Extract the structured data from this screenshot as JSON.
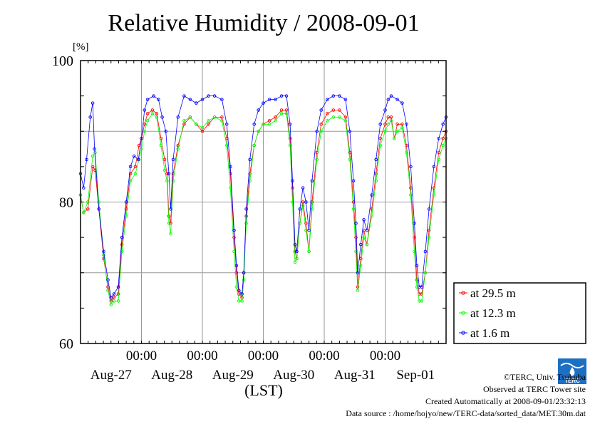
{
  "chart_data": {
    "type": "scatter",
    "title": "Relative Humidity / 2008-09-01",
    "ylabel": "[%]",
    "xlabel": "(LST)",
    "ylim": [
      60,
      100
    ],
    "yticks": [
      60,
      80,
      100
    ],
    "ygrid": [
      70,
      80,
      90
    ],
    "xlim": [
      -1.0,
      5.0
    ],
    "xaxis_note": "x in days since Aug-27 00:00 LST",
    "midnight_ticks": [
      {
        "x": 0,
        "label": "00:00"
      },
      {
        "x": 1,
        "label": "00:00"
      },
      {
        "x": 2,
        "label": "00:00"
      },
      {
        "x": 3,
        "label": "00:00"
      },
      {
        "x": 4,
        "label": "00:00"
      }
    ],
    "day_labels": [
      {
        "x": -0.5,
        "label": "Aug-27"
      },
      {
        "x": 0.5,
        "label": "Aug-28"
      },
      {
        "x": 1.5,
        "label": "Aug-29"
      },
      {
        "x": 2.5,
        "label": "Aug-30"
      },
      {
        "x": 3.5,
        "label": "Aug-31"
      },
      {
        "x": 4.5,
        "label": "Sep-01"
      }
    ],
    "legend_position": "right",
    "series": [
      {
        "name": "at 29.5 m",
        "color": "#ff0000",
        "points": [
          [
            -1.0,
            81
          ],
          [
            -0.95,
            78.5
          ],
          [
            -0.88,
            79
          ],
          [
            -0.8,
            85
          ],
          [
            -0.76,
            84.5
          ],
          [
            -0.7,
            79
          ],
          [
            -0.62,
            72
          ],
          [
            -0.55,
            68
          ],
          [
            -0.5,
            66
          ],
          [
            -0.45,
            66.5
          ],
          [
            -0.38,
            67
          ],
          [
            -0.32,
            74
          ],
          [
            -0.25,
            79
          ],
          [
            -0.18,
            84
          ],
          [
            -0.1,
            85
          ],
          [
            -0.04,
            88
          ],
          [
            0.0,
            89
          ],
          [
            0.05,
            91
          ],
          [
            0.1,
            92.5
          ],
          [
            0.18,
            93
          ],
          [
            0.25,
            92.5
          ],
          [
            0.32,
            89
          ],
          [
            0.38,
            86
          ],
          [
            0.42,
            84
          ],
          [
            0.45,
            78
          ],
          [
            0.48,
            77
          ],
          [
            0.52,
            84
          ],
          [
            0.6,
            88
          ],
          [
            0.7,
            91
          ],
          [
            0.8,
            92
          ],
          [
            0.9,
            91
          ],
          [
            1.0,
            90
          ],
          [
            1.1,
            91
          ],
          [
            1.2,
            92
          ],
          [
            1.32,
            92
          ],
          [
            1.4,
            89
          ],
          [
            1.46,
            84
          ],
          [
            1.52,
            75
          ],
          [
            1.56,
            70
          ],
          [
            1.6,
            67
          ],
          [
            1.65,
            66.5
          ],
          [
            1.68,
            70
          ],
          [
            1.72,
            78
          ],
          [
            1.78,
            84
          ],
          [
            1.85,
            88
          ],
          [
            1.92,
            90
          ],
          [
            2.0,
            91
          ],
          [
            2.1,
            91.5
          ],
          [
            2.2,
            92
          ],
          [
            2.3,
            93
          ],
          [
            2.38,
            93
          ],
          [
            2.44,
            89
          ],
          [
            2.48,
            82
          ],
          [
            2.52,
            73
          ],
          [
            2.55,
            72
          ],
          [
            2.6,
            77
          ],
          [
            2.65,
            80
          ],
          [
            2.7,
            77
          ],
          [
            2.75,
            73
          ],
          [
            2.8,
            80
          ],
          [
            2.88,
            87
          ],
          [
            2.95,
            91
          ],
          [
            3.05,
            92.5
          ],
          [
            3.15,
            93
          ],
          [
            3.25,
            93
          ],
          [
            3.35,
            92
          ],
          [
            3.42,
            87
          ],
          [
            3.48,
            80
          ],
          [
            3.52,
            75
          ],
          [
            3.55,
            68
          ],
          [
            3.6,
            72
          ],
          [
            3.65,
            76
          ],
          [
            3.7,
            74
          ],
          [
            3.78,
            79
          ],
          [
            3.85,
            84
          ],
          [
            3.92,
            89
          ],
          [
            4.0,
            91
          ],
          [
            4.05,
            92
          ],
          [
            4.1,
            92
          ],
          [
            4.15,
            89
          ],
          [
            4.2,
            91
          ],
          [
            4.28,
            91
          ],
          [
            4.35,
            88
          ],
          [
            4.42,
            82
          ],
          [
            4.48,
            75
          ],
          [
            4.52,
            69
          ],
          [
            4.56,
            67
          ],
          [
            4.6,
            67
          ],
          [
            4.66,
            70
          ],
          [
            4.72,
            76
          ],
          [
            4.8,
            82
          ],
          [
            4.88,
            87
          ],
          [
            4.95,
            89
          ],
          [
            5.0,
            90
          ]
        ]
      },
      {
        "name": "at 12.3 m",
        "color": "#00ff00",
        "points": [
          [
            -1.0,
            81
          ],
          [
            -0.95,
            78.5
          ],
          [
            -0.88,
            80
          ],
          [
            -0.8,
            86.5
          ],
          [
            -0.76,
            87
          ],
          [
            -0.7,
            80
          ],
          [
            -0.62,
            72.5
          ],
          [
            -0.55,
            67.5
          ],
          [
            -0.5,
            65.5
          ],
          [
            -0.45,
            66
          ],
          [
            -0.38,
            66
          ],
          [
            -0.32,
            73
          ],
          [
            -0.25,
            78
          ],
          [
            -0.18,
            83
          ],
          [
            -0.1,
            84
          ],
          [
            -0.04,
            86
          ],
          [
            0.0,
            87.5
          ],
          [
            0.05,
            90
          ],
          [
            0.1,
            91.5
          ],
          [
            0.18,
            92.5
          ],
          [
            0.25,
            92
          ],
          [
            0.32,
            88
          ],
          [
            0.38,
            84.5
          ],
          [
            0.42,
            83
          ],
          [
            0.45,
            77
          ],
          [
            0.48,
            75.5
          ],
          [
            0.52,
            83
          ],
          [
            0.6,
            87.5
          ],
          [
            0.7,
            91.5
          ],
          [
            0.8,
            92
          ],
          [
            0.9,
            91
          ],
          [
            1.0,
            90.5
          ],
          [
            1.1,
            91.5
          ],
          [
            1.2,
            92
          ],
          [
            1.32,
            91.5
          ],
          [
            1.4,
            88
          ],
          [
            1.46,
            82
          ],
          [
            1.52,
            73
          ],
          [
            1.56,
            68
          ],
          [
            1.6,
            66
          ],
          [
            1.65,
            66
          ],
          [
            1.68,
            69
          ],
          [
            1.72,
            77
          ],
          [
            1.78,
            83
          ],
          [
            1.85,
            88
          ],
          [
            1.92,
            90
          ],
          [
            2.0,
            91
          ],
          [
            2.1,
            91
          ],
          [
            2.2,
            91.5
          ],
          [
            2.3,
            92.5
          ],
          [
            2.38,
            92.5
          ],
          [
            2.44,
            88
          ],
          [
            2.48,
            80
          ],
          [
            2.52,
            71.5
          ],
          [
            2.55,
            72
          ],
          [
            2.6,
            77
          ],
          [
            2.65,
            79.5
          ],
          [
            2.7,
            76
          ],
          [
            2.75,
            73
          ],
          [
            2.8,
            79
          ],
          [
            2.88,
            86
          ],
          [
            2.95,
            90
          ],
          [
            3.05,
            91.5
          ],
          [
            3.15,
            92
          ],
          [
            3.25,
            92
          ],
          [
            3.35,
            91.5
          ],
          [
            3.42,
            86
          ],
          [
            3.48,
            79
          ],
          [
            3.52,
            73
          ],
          [
            3.55,
            67.5
          ],
          [
            3.6,
            71
          ],
          [
            3.65,
            75
          ],
          [
            3.7,
            74
          ],
          [
            3.78,
            78
          ],
          [
            3.85,
            83
          ],
          [
            3.92,
            88
          ],
          [
            4.0,
            90
          ],
          [
            4.05,
            91
          ],
          [
            4.1,
            91.5
          ],
          [
            4.15,
            89
          ],
          [
            4.2,
            90
          ],
          [
            4.28,
            90.5
          ],
          [
            4.35,
            87
          ],
          [
            4.42,
            81
          ],
          [
            4.48,
            73
          ],
          [
            4.52,
            68
          ],
          [
            4.56,
            66
          ],
          [
            4.6,
            66
          ],
          [
            4.66,
            70
          ],
          [
            4.72,
            75
          ],
          [
            4.8,
            81
          ],
          [
            4.88,
            86
          ],
          [
            4.95,
            88
          ],
          [
            5.0,
            89
          ]
        ]
      },
      {
        "name": "at 1.6 m",
        "color": "#0000ff",
        "points": [
          [
            -1.0,
            84
          ],
          [
            -0.95,
            82
          ],
          [
            -0.9,
            86
          ],
          [
            -0.84,
            92
          ],
          [
            -0.8,
            94
          ],
          [
            -0.77,
            87.5
          ],
          [
            -0.7,
            79
          ],
          [
            -0.62,
            73
          ],
          [
            -0.55,
            69
          ],
          [
            -0.5,
            66.5
          ],
          [
            -0.45,
            67
          ],
          [
            -0.38,
            68
          ],
          [
            -0.32,
            75
          ],
          [
            -0.25,
            80
          ],
          [
            -0.18,
            85
          ],
          [
            -0.12,
            86.5
          ],
          [
            -0.05,
            86
          ],
          [
            0.0,
            89
          ],
          [
            0.05,
            93
          ],
          [
            0.1,
            94.5
          ],
          [
            0.2,
            95
          ],
          [
            0.28,
            94.5
          ],
          [
            0.34,
            92
          ],
          [
            0.4,
            90
          ],
          [
            0.45,
            84
          ],
          [
            0.48,
            79
          ],
          [
            0.52,
            86
          ],
          [
            0.6,
            92
          ],
          [
            0.7,
            95
          ],
          [
            0.8,
            94.5
          ],
          [
            0.9,
            94
          ],
          [
            1.0,
            94.5
          ],
          [
            1.1,
            95
          ],
          [
            1.2,
            95
          ],
          [
            1.32,
            94.5
          ],
          [
            1.4,
            91
          ],
          [
            1.46,
            85
          ],
          [
            1.52,
            76
          ],
          [
            1.56,
            71
          ],
          [
            1.6,
            67.5
          ],
          [
            1.65,
            67
          ],
          [
            1.68,
            70
          ],
          [
            1.72,
            79
          ],
          [
            1.78,
            86
          ],
          [
            1.85,
            91
          ],
          [
            1.92,
            93
          ],
          [
            2.0,
            94
          ],
          [
            2.1,
            94.5
          ],
          [
            2.2,
            94.5
          ],
          [
            2.3,
            95
          ],
          [
            2.38,
            95
          ],
          [
            2.44,
            91
          ],
          [
            2.48,
            83
          ],
          [
            2.52,
            74
          ],
          [
            2.55,
            73
          ],
          [
            2.6,
            79
          ],
          [
            2.65,
            82
          ],
          [
            2.7,
            80
          ],
          [
            2.75,
            76
          ],
          [
            2.8,
            83
          ],
          [
            2.88,
            90
          ],
          [
            2.95,
            93
          ],
          [
            3.05,
            94.5
          ],
          [
            3.15,
            95
          ],
          [
            3.25,
            95
          ],
          [
            3.35,
            94.5
          ],
          [
            3.42,
            90
          ],
          [
            3.48,
            83
          ],
          [
            3.52,
            77
          ],
          [
            3.55,
            70
          ],
          [
            3.6,
            74
          ],
          [
            3.65,
            77.5
          ],
          [
            3.7,
            76
          ],
          [
            3.78,
            81
          ],
          [
            3.85,
            86
          ],
          [
            3.92,
            91
          ],
          [
            4.0,
            93
          ],
          [
            4.05,
            94.5
          ],
          [
            4.1,
            95
          ],
          [
            4.2,
            94.5
          ],
          [
            4.28,
            94
          ],
          [
            4.35,
            91
          ],
          [
            4.42,
            85
          ],
          [
            4.48,
            77
          ],
          [
            4.52,
            71
          ],
          [
            4.56,
            68
          ],
          [
            4.6,
            68
          ],
          [
            4.66,
            73
          ],
          [
            4.72,
            79
          ],
          [
            4.8,
            85
          ],
          [
            4.88,
            89
          ],
          [
            4.95,
            91
          ],
          [
            5.0,
            92
          ]
        ]
      }
    ]
  },
  "credits": {
    "copyright": "©TERC, Univ. Tsukuba",
    "observed": "Observed at TERC Tower site",
    "created": "Created Automatically at 2008-09-01/23:32:13",
    "source": "Data source : /home/hojyo/new/TERC-data/sorted_data/MET.30m.dat",
    "logo_text": "TERC"
  }
}
